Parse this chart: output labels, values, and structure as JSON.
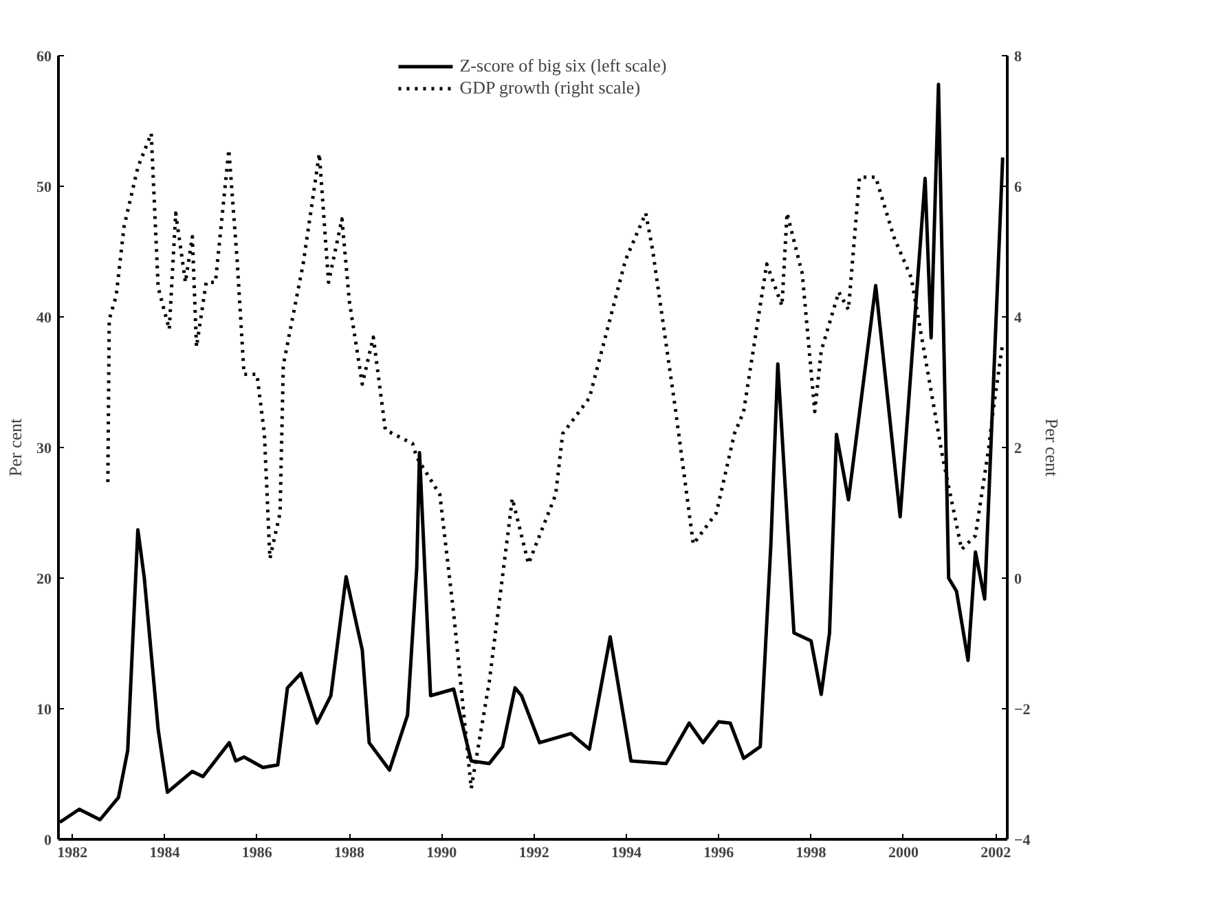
{
  "chart_data": {
    "type": "line",
    "ylabel": "Per cent",
    "y2label": "Per cent",
    "legend": "top",
    "grid": false,
    "xlim": [
      1981.7,
      2002.25
    ],
    "xticks": [
      1982,
      1984,
      1986,
      1988,
      1990,
      1992,
      1994,
      1996,
      1998,
      2000,
      2002
    ],
    "ylim": [
      0,
      60
    ],
    "yticks": [
      0,
      10,
      20,
      30,
      40,
      50,
      60
    ],
    "y2lim": [
      -4,
      8
    ],
    "y2ticks": [
      -4,
      -2,
      0,
      2,
      4,
      6,
      8
    ],
    "series": [
      {
        "name": "Z-score of big six (left scale)",
        "color": "#000000",
        "line_style": "solid",
        "x": [
          1981.73,
          1982.15,
          1982.6,
          1983.0,
          1983.2,
          1983.42,
          1983.56,
          1983.86,
          1984.06,
          1984.6,
          1984.83,
          1985.4,
          1985.54,
          1985.72,
          1986.13,
          1986.45,
          1986.66,
          1986.95,
          1987.3,
          1987.6,
          1987.93,
          1988.28,
          1988.43,
          1988.87,
          1989.26,
          1989.46,
          1989.52,
          1989.76,
          1990.26,
          1990.64,
          1991.03,
          1991.32,
          1991.59,
          1991.73,
          1992.12,
          1992.8,
          1993.2,
          1993.65,
          1994.1,
          1994.86,
          1995.36,
          1995.66,
          1996.0,
          1996.25,
          1996.54,
          1996.9,
          1997.13,
          1997.28,
          1997.63,
          1998.0,
          1998.22,
          1998.4,
          1998.55,
          1998.81,
          1999.4,
          1999.93,
          2000.47,
          2000.6,
          2000.76,
          2000.98,
          2001.15,
          2001.4,
          2001.56,
          2001.76,
          2002.15
        ],
        "values": [
          1.3,
          2.3,
          1.5,
          3.2,
          6.8,
          23.7,
          20,
          8.4,
          3.6,
          5.2,
          4.8,
          7.4,
          6.0,
          6.3,
          5.5,
          5.7,
          11.6,
          12.7,
          8.9,
          11,
          20.1,
          14.5,
          7.4,
          5.3,
          9.5,
          20.8,
          29.6,
          11,
          11.5,
          6,
          5.8,
          7.1,
          11.6,
          11,
          7.4,
          8.1,
          6.9,
          15.5,
          6,
          5.8,
          8.9,
          7.4,
          9,
          8.9,
          6.2,
          7.1,
          22.6,
          36.4,
          15.8,
          15.2,
          11.1,
          15.8,
          31,
          26,
          42.4,
          24.7,
          50.6,
          38.4,
          57.8,
          20,
          19,
          13.7,
          22,
          18.4,
          52.2
        ]
      },
      {
        "name": "GDP growth (right scale)",
        "color": "#000000",
        "line_style": "dotted",
        "axis": "y2",
        "x": [
          1982.77,
          1982.8,
          1982.95,
          1983.12,
          1983.42,
          1983.71,
          1983.86,
          1984.1,
          1984.24,
          1984.45,
          1984.6,
          1984.69,
          1984.9,
          1985.1,
          1985.39,
          1985.57,
          1985.72,
          1986.0,
          1986.16,
          1986.28,
          1986.5,
          1986.57,
          1987.0,
          1987.35,
          1987.55,
          1987.84,
          1988.0,
          1988.28,
          1988.52,
          1988.78,
          1989.37,
          1989.46,
          1989.96,
          1990.26,
          1990.64,
          1991.03,
          1991.53,
          1991.88,
          1992.47,
          1992.62,
          1993.2,
          1993.98,
          1994.42,
          1994.57,
          1995.07,
          1995.45,
          1995.95,
          1996.34,
          1996.54,
          1997.04,
          1997.37,
          1997.48,
          1997.81,
          1998.08,
          1998.22,
          1998.6,
          1998.81,
          1999.05,
          1999.4,
          1999.79,
          2000.17,
          2000.73,
          2000.85,
          2001.26,
          2001.56,
          2001.85,
          2001.94,
          2002.15
        ],
        "values": [
          1.47,
          3.96,
          4.32,
          5.38,
          6.29,
          6.81,
          4.45,
          3.81,
          5.59,
          4.53,
          5.23,
          3.54,
          4.53,
          4.53,
          6.56,
          4.87,
          3.12,
          3.12,
          2.21,
          0.3,
          1.0,
          3.26,
          4.81,
          6.5,
          4.53,
          5.5,
          4.24,
          2.97,
          3.69,
          2.27,
          2.06,
          1.85,
          1.28,
          -0.54,
          -3.22,
          -1.59,
          1.22,
          0.22,
          1.28,
          2.21,
          2.76,
          4.87,
          5.59,
          5.02,
          2.55,
          0.52,
          1.0,
          2.21,
          2.55,
          4.81,
          4.17,
          5.59,
          4.66,
          2.55,
          3.48,
          4.38,
          4.11,
          6.14,
          6.14,
          5.23,
          4.6,
          2.34,
          1.85,
          0.44,
          0.65,
          2.0,
          2.55,
          3.6
        ]
      }
    ]
  }
}
